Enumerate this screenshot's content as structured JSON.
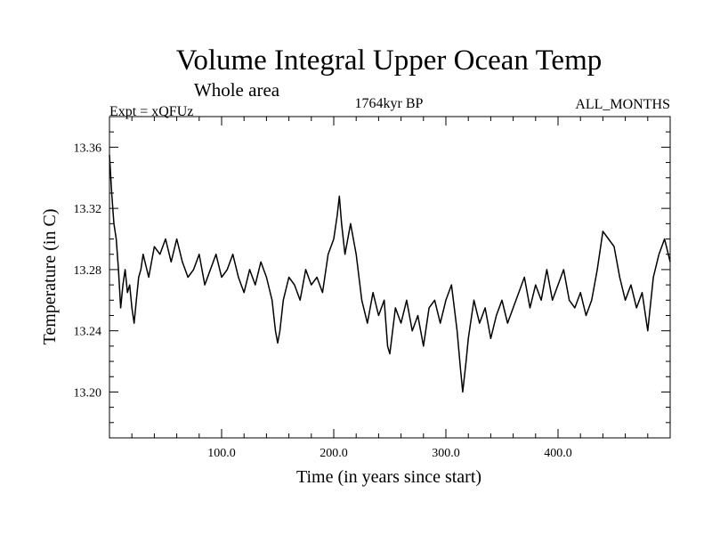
{
  "chart_data": {
    "type": "line",
    "title": "Volume Integral Upper Ocean Temp",
    "subtitle": "Whole area",
    "experiment": "Expt = xQFUz",
    "period": "1764kyr BP",
    "months": "ALL_MONTHS",
    "xlabel": "Time (in years since start)",
    "ylabel": "Temperature (in C)",
    "xlim": [
      0,
      500
    ],
    "ylim": [
      13.17,
      13.38
    ],
    "x_ticks": [
      100,
      200,
      300,
      400
    ],
    "x_tick_labels": [
      "100.0",
      "200.0",
      "300.0",
      "400.0"
    ],
    "y_ticks": [
      13.2,
      13.24,
      13.28,
      13.32,
      13.36
    ],
    "y_tick_labels": [
      "13.20",
      "13.24",
      "13.28",
      "13.32",
      "13.36"
    ],
    "grid": false,
    "series": [
      {
        "name": "Volume Integral Upper Ocean Temp",
        "x": [
          0,
          2,
          4,
          6,
          8,
          10,
          12,
          14,
          16,
          18,
          20,
          22,
          24,
          26,
          28,
          30,
          35,
          40,
          45,
          50,
          55,
          60,
          65,
          70,
          75,
          80,
          85,
          90,
          95,
          100,
          105,
          110,
          115,
          120,
          125,
          130,
          135,
          140,
          145,
          148,
          150,
          152,
          155,
          160,
          165,
          170,
          175,
          180,
          185,
          190,
          195,
          200,
          203,
          205,
          207,
          210,
          215,
          220,
          225,
          230,
          235,
          240,
          245,
          248,
          250,
          255,
          260,
          265,
          270,
          275,
          280,
          285,
          290,
          295,
          300,
          305,
          310,
          313,
          315,
          318,
          320,
          325,
          330,
          335,
          340,
          345,
          350,
          355,
          360,
          365,
          370,
          375,
          380,
          385,
          390,
          395,
          400,
          405,
          410,
          415,
          420,
          425,
          430,
          435,
          440,
          445,
          450,
          455,
          460,
          465,
          470,
          475,
          480,
          485,
          490,
          495,
          500
        ],
        "values": [
          13.355,
          13.33,
          13.31,
          13.3,
          13.28,
          13.255,
          13.27,
          13.28,
          13.265,
          13.27,
          13.255,
          13.245,
          13.26,
          13.275,
          13.28,
          13.29,
          13.275,
          13.295,
          13.29,
          13.3,
          13.285,
          13.3,
          13.285,
          13.275,
          13.28,
          13.29,
          13.27,
          13.28,
          13.29,
          13.275,
          13.28,
          13.29,
          13.275,
          13.265,
          13.28,
          13.27,
          13.285,
          13.275,
          13.26,
          13.24,
          13.232,
          13.24,
          13.26,
          13.275,
          13.27,
          13.26,
          13.28,
          13.27,
          13.275,
          13.265,
          13.29,
          13.3,
          13.315,
          13.328,
          13.31,
          13.29,
          13.31,
          13.29,
          13.26,
          13.245,
          13.265,
          13.25,
          13.26,
          13.23,
          13.225,
          13.255,
          13.245,
          13.26,
          13.24,
          13.25,
          13.23,
          13.255,
          13.26,
          13.245,
          13.26,
          13.27,
          13.24,
          13.215,
          13.2,
          13.22,
          13.235,
          13.26,
          13.245,
          13.255,
          13.235,
          13.25,
          13.26,
          13.245,
          13.255,
          13.265,
          13.275,
          13.255,
          13.27,
          13.26,
          13.28,
          13.26,
          13.27,
          13.28,
          13.26,
          13.255,
          13.265,
          13.25,
          13.26,
          13.28,
          13.305,
          13.3,
          13.295,
          13.275,
          13.26,
          13.27,
          13.255,
          13.265,
          13.24,
          13.275,
          13.29,
          13.3,
          13.285
        ]
      }
    ]
  }
}
